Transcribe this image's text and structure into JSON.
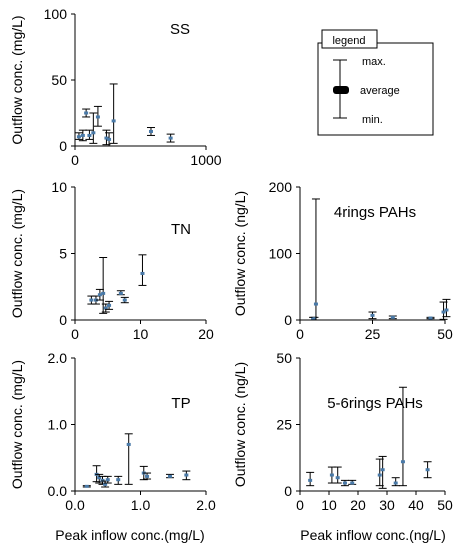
{
  "x_axis_labels": {
    "left": "Peak inflow conc.(mg/L)",
    "right": "Peak inflow conc.(ng/L)"
  },
  "legend": {
    "title": "legend",
    "max": "max.",
    "average": "average",
    "min": "min."
  },
  "colors": {
    "whisker": "#000000",
    "average": "#4a7aa8"
  },
  "chart_data": [
    {
      "type": "scatter",
      "title": "SS",
      "ylabel": "Outflow conc. (mg/L)",
      "xlim": [
        0,
        1000
      ],
      "ylim": [
        0,
        100
      ],
      "xticks": [
        "0",
        "1000"
      ],
      "yticks": [
        "0",
        "50",
        "100"
      ],
      "grid": false,
      "points": [
        {
          "x": 30,
          "min": 5,
          "avg": 7,
          "max": 10
        },
        {
          "x": 60,
          "min": 4,
          "avg": 8,
          "max": 12
        },
        {
          "x": 85,
          "min": 22,
          "avg": 25,
          "max": 28
        },
        {
          "x": 110,
          "min": 5,
          "avg": 8,
          "max": 12
        },
        {
          "x": 140,
          "min": 2,
          "avg": 10,
          "max": 25
        },
        {
          "x": 175,
          "min": 15,
          "avg": 22,
          "max": 30
        },
        {
          "x": 240,
          "min": 1,
          "avg": 6,
          "max": 12
        },
        {
          "x": 260,
          "min": 0,
          "avg": 5,
          "max": 10
        },
        {
          "x": 295,
          "min": 2,
          "avg": 19,
          "max": 47
        },
        {
          "x": 580,
          "min": 8,
          "avg": 11,
          "max": 14
        },
        {
          "x": 730,
          "min": 3,
          "avg": 6,
          "max": 9
        }
      ]
    },
    {
      "type": "scatter",
      "title": "TN",
      "ylabel": "Outflow conc. (mg/L)",
      "xlim": [
        0,
        20
      ],
      "ylim": [
        0,
        10
      ],
      "xticks": [
        "0",
        "10",
        "20"
      ],
      "yticks": [
        "0",
        "5",
        "10"
      ],
      "grid": false,
      "points": [
        {
          "x": 2.5,
          "min": 1.2,
          "avg": 1.5,
          "max": 1.8
        },
        {
          "x": 3.2,
          "min": 1.2,
          "avg": 1.5,
          "max": 1.8
        },
        {
          "x": 3.8,
          "min": 1.5,
          "avg": 1.9,
          "max": 2.3
        },
        {
          "x": 4.3,
          "min": 0.5,
          "avg": 2.0,
          "max": 4.7
        },
        {
          "x": 4.7,
          "min": 0.6,
          "avg": 0.9,
          "max": 1.2
        },
        {
          "x": 5.2,
          "min": 0.8,
          "avg": 1.1,
          "max": 1.4
        },
        {
          "x": 7.0,
          "min": 1.9,
          "avg": 2.0,
          "max": 2.2
        },
        {
          "x": 7.6,
          "min": 1.3,
          "avg": 1.5,
          "max": 1.7
        },
        {
          "x": 10.3,
          "min": 2.6,
          "avg": 3.5,
          "max": 4.9
        }
      ]
    },
    {
      "type": "scatter",
      "title": "TP",
      "ylabel": "Outflow conc. (mg/L)",
      "xlim": [
        0,
        2.0
      ],
      "ylim": [
        0,
        2.0
      ],
      "xticks": [
        "0.0",
        "1.0",
        "2.0"
      ],
      "yticks": [
        "0.0",
        "1.0",
        "2.0"
      ],
      "grid": false,
      "points": [
        {
          "x": 0.18,
          "min": 0.06,
          "avg": 0.07,
          "max": 0.08
        },
        {
          "x": 0.33,
          "min": 0.14,
          "avg": 0.25,
          "max": 0.38
        },
        {
          "x": 0.37,
          "min": 0.12,
          "avg": 0.2,
          "max": 0.25
        },
        {
          "x": 0.42,
          "min": 0.1,
          "avg": 0.16,
          "max": 0.22
        },
        {
          "x": 0.46,
          "min": 0.06,
          "avg": 0.1,
          "max": 0.15
        },
        {
          "x": 0.5,
          "min": 0.12,
          "avg": 0.17,
          "max": 0.22
        },
        {
          "x": 0.66,
          "min": 0.1,
          "avg": 0.17,
          "max": 0.22
        },
        {
          "x": 0.82,
          "min": 0.1,
          "avg": 0.7,
          "max": 0.86
        },
        {
          "x": 1.05,
          "min": 0.17,
          "avg": 0.27,
          "max": 0.37
        },
        {
          "x": 1.1,
          "min": 0.18,
          "avg": 0.22,
          "max": 0.27
        },
        {
          "x": 1.45,
          "min": 0.2,
          "avg": 0.22,
          "max": 0.25
        },
        {
          "x": 1.7,
          "min": 0.17,
          "avg": 0.24,
          "max": 0.3
        }
      ]
    },
    {
      "type": "scatter",
      "title": "4rings PAHs",
      "ylabel": "Outflow conc. (ng/L)",
      "xlim": [
        0,
        50
      ],
      "ylim": [
        0,
        200
      ],
      "xticks": [
        "0",
        "25",
        "50"
      ],
      "yticks": [
        "0",
        "100",
        "200"
      ],
      "grid": false,
      "points": [
        {
          "x": 4.5,
          "min": 0,
          "avg": 2,
          "max": 4
        },
        {
          "x": 5.0,
          "min": 0,
          "avg": 2,
          "max": 4
        },
        {
          "x": 5.5,
          "min": 0,
          "avg": 24,
          "max": 182
        },
        {
          "x": 25.0,
          "min": 2,
          "avg": 7,
          "max": 12
        },
        {
          "x": 32.0,
          "min": 2,
          "avg": 4,
          "max": 6
        },
        {
          "x": 45.0,
          "min": 2,
          "avg": 3,
          "max": 4
        },
        {
          "x": 49.5,
          "min": 1,
          "avg": 12,
          "max": 27
        },
        {
          "x": 50.5,
          "min": 5,
          "avg": 15,
          "max": 31
        }
      ]
    },
    {
      "type": "scatter",
      "title": "5-6rings PAHs",
      "ylabel": "Outflow conc. (ng/L)",
      "xlim": [
        0,
        50
      ],
      "ylim": [
        0,
        50
      ],
      "xticks": [
        "0",
        "10",
        "20",
        "30",
        "40",
        "50"
      ],
      "yticks": [
        "0",
        "25",
        "50"
      ],
      "grid": false,
      "points": [
        {
          "x": 3.5,
          "min": 2,
          "avg": 4,
          "max": 7
        },
        {
          "x": 11.0,
          "min": 3,
          "avg": 6,
          "max": 9
        },
        {
          "x": 13.0,
          "min": 3,
          "avg": 5,
          "max": 9
        },
        {
          "x": 15.5,
          "min": 2,
          "avg": 3,
          "max": 4
        },
        {
          "x": 18.0,
          "min": 2.5,
          "avg": 3,
          "max": 4
        },
        {
          "x": 27.5,
          "min": 2,
          "avg": 6,
          "max": 12
        },
        {
          "x": 28.5,
          "min": 1,
          "avg": 8,
          "max": 13
        },
        {
          "x": 33.0,
          "min": 2,
          "avg": 3,
          "max": 5
        },
        {
          "x": 35.5,
          "min": 2,
          "avg": 11,
          "max": 39
        },
        {
          "x": 44.0,
          "min": 5,
          "avg": 8,
          "max": 11
        }
      ]
    }
  ]
}
